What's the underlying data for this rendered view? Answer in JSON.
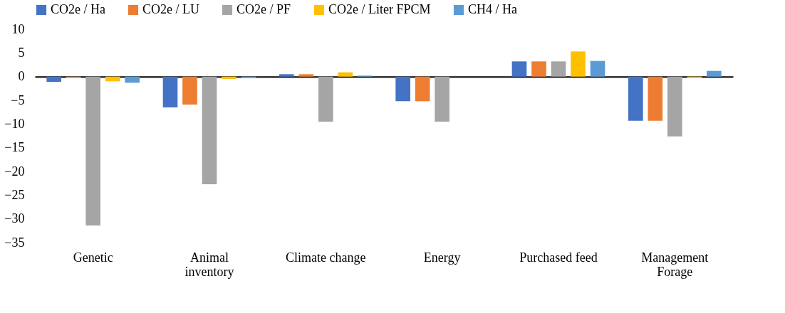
{
  "chart_data": {
    "type": "bar",
    "categories": [
      "Genetic",
      "Animal inventory",
      "Climate change",
      "Energy",
      "Purchased feed",
      "Management Forage"
    ],
    "series": [
      {
        "name": "CO2e / Ha",
        "color": "#4472c4",
        "values": [
          -1.1,
          -6.5,
          0.5,
          -5.2,
          3.2,
          -9.3
        ]
      },
      {
        "name": "CO2e / LU",
        "color": "#ed7d31",
        "values": [
          -0.2,
          -5.9,
          0.5,
          -5.2,
          3.2,
          -9.3
        ]
      },
      {
        "name": "CO2e / PF",
        "color": "#a5a5a5",
        "values": [
          -31.4,
          -22.7,
          -9.5,
          -9.5,
          3.2,
          -12.6
        ]
      },
      {
        "name": "CO2e / Liter FPCM",
        "color": "#ffc000",
        "values": [
          -1.0,
          -0.5,
          0.9,
          0,
          5.3,
          -0.2
        ]
      },
      {
        "name": "CH4 / Ha",
        "color": "#5b9bd5",
        "values": [
          -1.3,
          -0.3,
          0.2,
          0,
          3.3,
          1.2
        ]
      }
    ],
    "ylim": [
      -35,
      10
    ],
    "yticks": [
      -35,
      -30,
      -25,
      -20,
      -15,
      -10,
      -5,
      0,
      5,
      10
    ],
    "legend": "top"
  }
}
